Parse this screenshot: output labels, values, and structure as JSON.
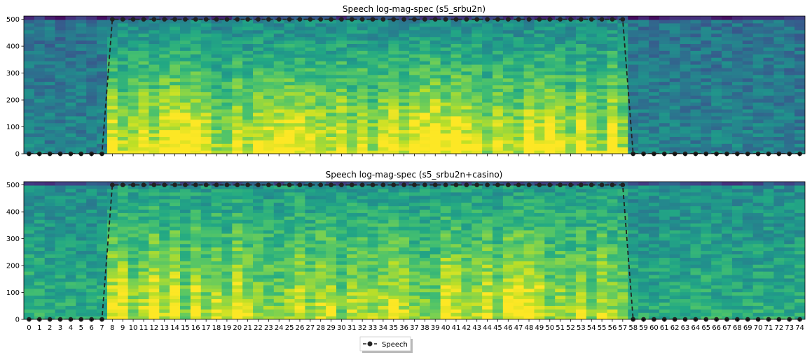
{
  "chart_data": [
    {
      "type": "heatmap",
      "title": "Speech log-mag-spec (s5_srbu2n)",
      "xlim": [
        -0.5,
        74.5
      ],
      "ylim": [
        0,
        512
      ],
      "yticks": [
        0,
        100,
        200,
        300,
        400,
        500
      ],
      "xticks": [
        0,
        1,
        2,
        3,
        4,
        5,
        6,
        7,
        8,
        9,
        10,
        11,
        12,
        13,
        14,
        15,
        16,
        17,
        18,
        19,
        20,
        21,
        22,
        23,
        24,
        25,
        26,
        27,
        28,
        29,
        30,
        31,
        32,
        33,
        34,
        35,
        36,
        37,
        38,
        39,
        40,
        41,
        42,
        43,
        44,
        45,
        46,
        47,
        48,
        49,
        50,
        51,
        52,
        53,
        54,
        55,
        56,
        57,
        58,
        59,
        60,
        61,
        62,
        63,
        64,
        65,
        66,
        67,
        68,
        69,
        70,
        71,
        72,
        73,
        74
      ],
      "xtick_labels_shown": false,
      "colormap": "viridis",
      "overlay_series": {
        "name": "Speech",
        "style": "dashed line with circle markers",
        "color": "#222222",
        "x": [
          0,
          1,
          2,
          3,
          4,
          5,
          6,
          7,
          8,
          9,
          10,
          11,
          12,
          13,
          14,
          15,
          16,
          17,
          18,
          19,
          20,
          21,
          22,
          23,
          24,
          25,
          26,
          27,
          28,
          29,
          30,
          31,
          32,
          33,
          34,
          35,
          36,
          37,
          38,
          39,
          40,
          41,
          42,
          43,
          44,
          45,
          46,
          47,
          48,
          49,
          50,
          51,
          52,
          53,
          54,
          55,
          56,
          57,
          58,
          59,
          60,
          61,
          62,
          63,
          64,
          65,
          66,
          67,
          68,
          69,
          70,
          71,
          72,
          73,
          74
        ],
        "values": [
          0,
          0,
          0,
          0,
          0,
          0,
          0,
          0,
          500,
          500,
          500,
          500,
          500,
          500,
          500,
          500,
          500,
          500,
          500,
          500,
          500,
          500,
          500,
          500,
          500,
          500,
          500,
          500,
          500,
          500,
          500,
          500,
          500,
          500,
          500,
          500,
          500,
          500,
          500,
          500,
          500,
          500,
          500,
          500,
          500,
          500,
          500,
          500,
          500,
          500,
          500,
          500,
          500,
          500,
          500,
          500,
          500,
          500,
          0,
          0,
          0,
          0,
          0,
          0,
          0,
          0,
          0,
          0,
          0,
          0,
          0,
          0,
          0,
          0,
          0
        ]
      }
    },
    {
      "type": "heatmap",
      "title": "Speech log-mag-spec (s5_srbu2n+casino)",
      "xlim": [
        -0.5,
        74.5
      ],
      "ylim": [
        0,
        512
      ],
      "yticks": [
        0,
        100,
        200,
        300,
        400,
        500
      ],
      "xticks": [
        0,
        1,
        2,
        3,
        4,
        5,
        6,
        7,
        8,
        9,
        10,
        11,
        12,
        13,
        14,
        15,
        16,
        17,
        18,
        19,
        20,
        21,
        22,
        23,
        24,
        25,
        26,
        27,
        28,
        29,
        30,
        31,
        32,
        33,
        34,
        35,
        36,
        37,
        38,
        39,
        40,
        41,
        42,
        43,
        44,
        45,
        46,
        47,
        48,
        49,
        50,
        51,
        52,
        53,
        54,
        55,
        56,
        57,
        58,
        59,
        60,
        61,
        62,
        63,
        64,
        65,
        66,
        67,
        68,
        69,
        70,
        71,
        72,
        73,
        74
      ],
      "xtick_labels_shown": true,
      "colormap": "viridis",
      "overlay_series": {
        "name": "Speech",
        "style": "dashed line with circle markers",
        "color": "#222222",
        "x": [
          0,
          1,
          2,
          3,
          4,
          5,
          6,
          7,
          8,
          9,
          10,
          11,
          12,
          13,
          14,
          15,
          16,
          17,
          18,
          19,
          20,
          21,
          22,
          23,
          24,
          25,
          26,
          27,
          28,
          29,
          30,
          31,
          32,
          33,
          34,
          35,
          36,
          37,
          38,
          39,
          40,
          41,
          42,
          43,
          44,
          45,
          46,
          47,
          48,
          49,
          50,
          51,
          52,
          53,
          54,
          55,
          56,
          57,
          58,
          59,
          60,
          61,
          62,
          63,
          64,
          65,
          66,
          67,
          68,
          69,
          70,
          71,
          72,
          73,
          74
        ],
        "values": [
          0,
          0,
          0,
          0,
          0,
          0,
          0,
          0,
          500,
          500,
          500,
          500,
          500,
          500,
          500,
          500,
          500,
          500,
          500,
          500,
          500,
          500,
          500,
          500,
          500,
          500,
          500,
          500,
          500,
          500,
          500,
          500,
          500,
          500,
          500,
          500,
          500,
          500,
          500,
          500,
          500,
          500,
          500,
          500,
          500,
          500,
          500,
          500,
          500,
          500,
          500,
          500,
          500,
          500,
          500,
          500,
          500,
          500,
          0,
          0,
          0,
          0,
          0,
          0,
          0,
          0,
          0,
          0,
          0,
          0,
          0,
          0,
          0,
          0,
          0
        ]
      }
    }
  ],
  "legend": {
    "label": "Speech",
    "placement": "bottom-center"
  }
}
